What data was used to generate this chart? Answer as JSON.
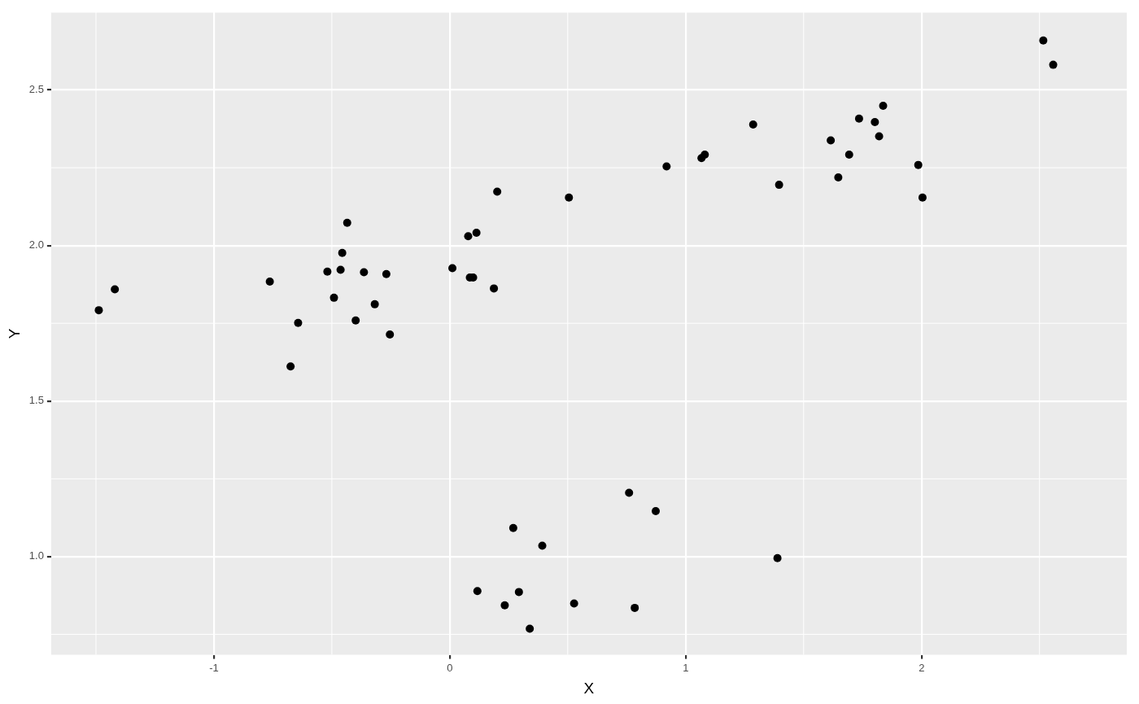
{
  "chart_data": {
    "type": "scatter",
    "xlabel": "X",
    "ylabel": "Y",
    "xlim": [
      -1.69,
      2.87
    ],
    "ylim": [
      0.684,
      2.75
    ],
    "xticks": [
      -1,
      0,
      1,
      2
    ],
    "yticks": [
      {
        "value": 1,
        "label": "1.0"
      },
      {
        "value": 1.5,
        "label": "1.5"
      },
      {
        "value": 2,
        "label": "2.0"
      },
      {
        "value": 2.5,
        "label": "2.5"
      }
    ],
    "grid": true,
    "legend": false,
    "marker": "circle",
    "series": [
      {
        "color": "#000000",
        "x": [
          -1.488,
          -1.42,
          -0.763,
          -0.675,
          -0.643,
          -0.519,
          -0.491,
          -0.463,
          -0.456,
          -0.435,
          -0.399,
          -0.364,
          -0.318,
          -0.269,
          -0.254,
          0.011,
          0.078,
          0.085,
          0.099,
          0.113,
          0.187,
          0.201,
          0.505,
          0.919,
          1.067,
          1.081,
          1.286,
          1.396,
          1.615,
          1.647,
          1.693,
          1.735,
          1.802,
          1.82,
          1.837,
          1.986,
          2.004,
          2.516,
          2.558,
          0.117,
          0.233,
          0.269,
          0.293,
          0.339,
          0.392,
          0.527,
          0.76,
          0.784,
          0.873,
          1.389
        ],
        "values": [
          1.792,
          1.859,
          1.884,
          1.611,
          1.751,
          1.916,
          1.832,
          1.922,
          1.976,
          2.073,
          1.759,
          1.914,
          1.811,
          1.908,
          1.714,
          1.927,
          2.03,
          1.897,
          1.897,
          2.041,
          1.862,
          2.173,
          2.154,
          2.254,
          2.281,
          2.292,
          2.389,
          2.195,
          2.338,
          2.219,
          2.292,
          2.408,
          2.397,
          2.351,
          2.449,
          2.259,
          2.154,
          2.659,
          2.581,
          0.889,
          0.843,
          1.092,
          0.886,
          0.768,
          1.035,
          0.849,
          1.205,
          0.835,
          1.146,
          0.995
        ]
      }
    ]
  }
}
